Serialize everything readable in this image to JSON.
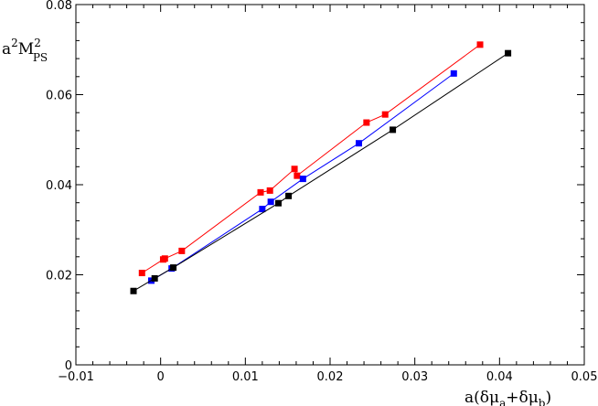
{
  "chart_data": {
    "type": "line",
    "title": "",
    "xlabel": {
      "text": "a(δμ",
      "sub_a": "a",
      "plus": "+δμ",
      "sub_b": "b",
      "close": ")"
    },
    "ylabel": {
      "a": "a",
      "sup1": "2",
      "m": "M",
      "sup2": "2",
      "sub": "PS"
    },
    "xlim": [
      -0.01,
      0.05
    ],
    "ylim": [
      0,
      0.08
    ],
    "xticks": [
      -0.01,
      0,
      0.01,
      0.02,
      0.03,
      0.04,
      0.05
    ],
    "xtick_labels": [
      "−0.01",
      "0",
      "0.01",
      "0.02",
      "0.03",
      "0.04",
      "0.05"
    ],
    "yticks": [
      0,
      0.02,
      0.04,
      0.06,
      0.08
    ],
    "ytick_labels": [
      "0",
      "0.02",
      "0.04",
      "0.06",
      "0.08"
    ],
    "grid": false,
    "marker": "square",
    "series": [
      {
        "color": "#ff0000",
        "points": [
          [
            -0.0022,
            0.0204
          ],
          [
            0.0003,
            0.0234
          ],
          [
            0.0005,
            0.0236
          ],
          [
            0.0025,
            0.0253
          ],
          [
            0.0118,
            0.0383
          ],
          [
            0.0129,
            0.0387
          ],
          [
            0.0158,
            0.0435
          ],
          [
            0.0161,
            0.042
          ],
          [
            0.0243,
            0.0538
          ],
          [
            0.0265,
            0.0556
          ],
          [
            0.0377,
            0.0711
          ]
        ]
      },
      {
        "color": "#0000ff",
        "points": [
          [
            -0.0011,
            0.0187
          ],
          [
            0.0013,
            0.0214
          ],
          [
            0.012,
            0.0346
          ],
          [
            0.013,
            0.0362
          ],
          [
            0.0168,
            0.0413
          ],
          [
            0.0234,
            0.0492
          ],
          [
            0.0346,
            0.0647
          ]
        ]
      },
      {
        "color": "#000000",
        "points": [
          [
            -0.0032,
            0.0164
          ],
          [
            -0.0007,
            0.0192
          ],
          [
            0.0015,
            0.0216
          ],
          [
            0.0139,
            0.0359
          ],
          [
            0.0151,
            0.0375
          ],
          [
            0.0274,
            0.0522
          ],
          [
            0.041,
            0.0692
          ]
        ]
      }
    ]
  }
}
